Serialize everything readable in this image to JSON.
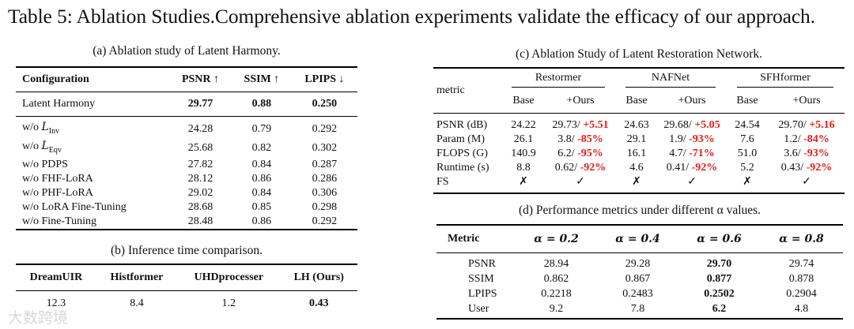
{
  "title": "Table 5: Ablation Studies.Comprehensive ablation experiments validate the efficacy of our approach.",
  "table_a": {
    "caption": "(a) Ablation study of Latent Harmony.",
    "headers": [
      "Configuration",
      "PSNR ↑",
      "SSIM ↑",
      "LPIPS ↓"
    ],
    "main_row": [
      "Latent Harmony",
      "29.77",
      "0.88",
      "0.250"
    ],
    "rows": [
      [
        "w/o L_Inv",
        "24.28",
        "0.79",
        "0.292"
      ],
      [
        "w/o L_Eqv",
        "25.68",
        "0.82",
        "0.302"
      ],
      [
        "w/o PDPS",
        "27.82",
        "0.84",
        "0.287"
      ],
      [
        "w/o FHF-LoRA",
        "28.12",
        "0.86",
        "0.286"
      ],
      [
        "w/o PHF-LoRA",
        "29.02",
        "0.84",
        "0.306"
      ],
      [
        "w/o LoRA Fine-Tuning",
        "28.68",
        "0.85",
        "0.298"
      ],
      [
        "w/o Fine-Tuning",
        "28.48",
        "0.86",
        "0.292"
      ]
    ],
    "inv_prefix": "w/o ",
    "inv_sym": "L",
    "inv_sub": "Inv",
    "eqv_prefix": "w/o ",
    "eqv_sym": "L",
    "eqv_sub": "Eqv"
  },
  "table_b": {
    "caption": "(b) Inference time comparison.",
    "headers": [
      "DreamUIR",
      "Histformer",
      "UHDprocesser",
      "LH (Ours)"
    ],
    "values": [
      "12.3",
      "8.4",
      "1.2",
      "0.43"
    ]
  },
  "table_c": {
    "caption": "(c) Ablation Study of Latent Restoration Network.",
    "metric_label": "metric",
    "groups": [
      "Restormer",
      "NAFNet",
      "SFHformer"
    ],
    "sub_headers": [
      "Base",
      "+Ours"
    ],
    "rows": [
      {
        "label": "PSNR (dB)",
        "cells": [
          [
            "24.22",
            "29.73/ ",
            "+5.51"
          ],
          [
            "24.63",
            "29.68/ ",
            "+5.05"
          ],
          [
            "24.54",
            "29.70/ ",
            "+5.16"
          ]
        ]
      },
      {
        "label": "Param (M)",
        "cells": [
          [
            "26.1",
            "3.8/ ",
            "-85%"
          ],
          [
            "29.1",
            "1.9/ ",
            "-93%"
          ],
          [
            "7.6",
            "1.2/ ",
            "-84%"
          ]
        ]
      },
      {
        "label": "FLOPS (G)",
        "cells": [
          [
            "140.9",
            "6.2/ ",
            "-95%"
          ],
          [
            "16.1",
            "4.7/ ",
            "-71%"
          ],
          [
            "51.0",
            "3.6/ ",
            "-93%"
          ]
        ]
      },
      {
        "label": "Runtime (s)",
        "cells": [
          [
            "8.8",
            "0.62/ ",
            "-92%"
          ],
          [
            "4.6",
            "0.41/ ",
            "-92%"
          ],
          [
            "5.2",
            "0.43/ ",
            "-92%"
          ]
        ]
      }
    ],
    "fs_label": "FS",
    "fs_no": "✗",
    "fs_yes": "✓"
  },
  "table_d": {
    "caption": "(d) Performance metrics under different α values.",
    "metric_header": "Metric",
    "alpha_headers": [
      "α = 0.2",
      "α = 0.4",
      "α = 0.6",
      "α = 0.8"
    ],
    "rows": [
      {
        "label": "PSNR",
        "values": [
          "28.94",
          "29.28",
          "29.70",
          "29.74"
        ]
      },
      {
        "label": "SSIM",
        "values": [
          "0.862",
          "0.867",
          "0.877",
          "0.878"
        ]
      },
      {
        "label": "LPIPS",
        "values": [
          "0.2218",
          "0.2483",
          "0.2502",
          "0.2904"
        ]
      },
      {
        "label": "User",
        "values": [
          "9.2",
          "7.8",
          "6.2",
          "4.8"
        ]
      }
    ]
  },
  "watermark": "大数跨境"
}
